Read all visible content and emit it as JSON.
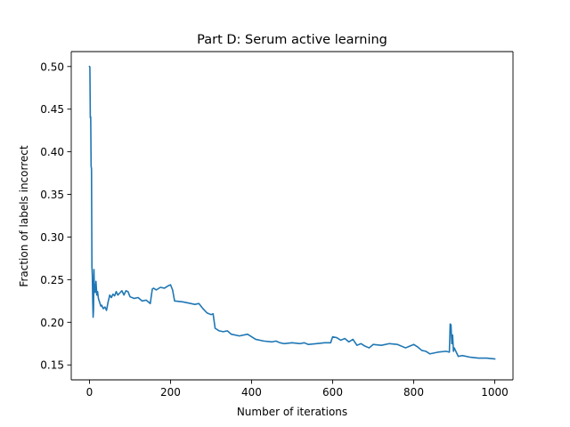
{
  "chart_data": {
    "type": "line",
    "title": "Part D: Serum active learning",
    "xlabel": "Number of iterations",
    "ylabel": "Fraction of labels incorrect",
    "xlim": [
      -45,
      1045
    ],
    "ylim": [
      0.1325,
      0.5175
    ],
    "xticks": [
      0,
      200,
      400,
      600,
      800,
      1000
    ],
    "xtick_labels": [
      "0",
      "200",
      "400",
      "600",
      "800",
      "1000"
    ],
    "yticks": [
      0.15,
      0.2,
      0.25,
      0.3,
      0.35,
      0.4,
      0.45,
      0.5
    ],
    "ytick_labels": [
      "0.15",
      "0.20",
      "0.25",
      "0.30",
      "0.35",
      "0.40",
      "0.45",
      "0.50"
    ],
    "grid": false,
    "legend": "none",
    "colors": {
      "line": "#1f77b4",
      "axes": "#000000",
      "background": "#ffffff"
    },
    "series": [
      {
        "x": [
          0,
          1,
          2,
          3,
          4,
          5,
          6,
          7,
          8,
          9,
          10,
          11,
          12,
          14,
          16,
          18,
          20,
          22,
          24,
          26,
          28,
          30,
          34,
          38,
          42,
          46,
          50,
          54,
          58,
          62,
          66,
          70,
          76,
          80,
          85,
          90,
          95,
          100,
          110,
          120,
          130,
          140,
          150,
          155,
          158,
          165,
          175,
          185,
          195,
          200,
          205,
          210,
          230,
          250,
          260,
          270,
          280,
          290,
          300,
          305,
          310,
          320,
          330,
          340,
          350,
          370,
          390,
          410,
          430,
          450,
          460,
          470,
          480,
          500,
          520,
          530,
          540,
          560,
          580,
          595,
          600,
          610,
          620,
          630,
          640,
          650,
          660,
          670,
          680,
          690,
          700,
          720,
          740,
          760,
          780,
          790,
          800,
          810,
          820,
          830,
          840,
          860,
          880,
          888,
          890,
          892,
          894,
          896,
          898,
          900,
          905,
          910,
          920,
          940,
          960,
          980,
          1000
        ],
        "values": [
          0.5,
          0.499,
          0.44,
          0.441,
          0.383,
          0.38,
          0.265,
          0.255,
          0.225,
          0.206,
          0.215,
          0.262,
          0.24,
          0.235,
          0.248,
          0.232,
          0.236,
          0.228,
          0.225,
          0.222,
          0.219,
          0.22,
          0.216,
          0.218,
          0.214,
          0.224,
          0.232,
          0.229,
          0.233,
          0.231,
          0.236,
          0.232,
          0.235,
          0.237,
          0.232,
          0.237,
          0.236,
          0.23,
          0.228,
          0.229,
          0.225,
          0.226,
          0.222,
          0.239,
          0.24,
          0.238,
          0.241,
          0.24,
          0.243,
          0.244,
          0.238,
          0.225,
          0.224,
          0.222,
          0.221,
          0.222,
          0.216,
          0.211,
          0.209,
          0.21,
          0.193,
          0.19,
          0.189,
          0.19,
          0.186,
          0.184,
          0.186,
          0.18,
          0.178,
          0.177,
          0.178,
          0.176,
          0.175,
          0.176,
          0.175,
          0.176,
          0.174,
          0.175,
          0.176,
          0.176,
          0.183,
          0.182,
          0.179,
          0.181,
          0.177,
          0.18,
          0.173,
          0.175,
          0.172,
          0.17,
          0.174,
          0.173,
          0.175,
          0.174,
          0.17,
          0.172,
          0.174,
          0.171,
          0.167,
          0.166,
          0.163,
          0.165,
          0.166,
          0.165,
          0.198,
          0.197,
          0.175,
          0.185,
          0.166,
          0.17,
          0.165,
          0.16,
          0.161,
          0.159,
          0.158,
          0.158,
          0.157
        ]
      }
    ]
  }
}
